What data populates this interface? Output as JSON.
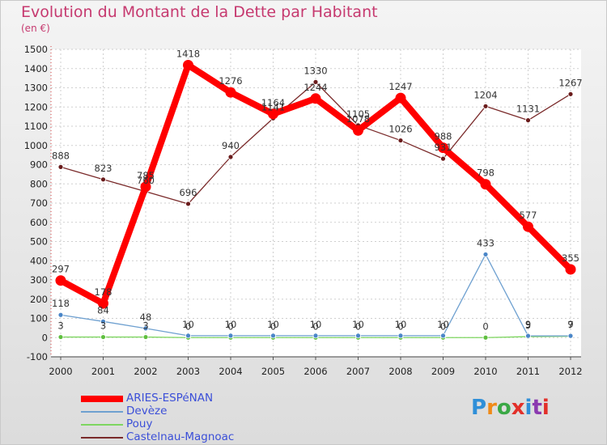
{
  "header": {
    "title": "Evolution du Montant de la Dette par Habitant",
    "subtitle": "(en €)"
  },
  "logo": {
    "text": "Proxiti",
    "colors": [
      "#2f8fd8",
      "#f08a18",
      "#3aa845",
      "#e2302a",
      "#2f8fd8",
      "#8b3ab0",
      "#e2302a"
    ]
  },
  "chart_data": {
    "type": "line",
    "x": [
      "2000",
      "2001",
      "2002",
      "2003",
      "2004",
      "2005",
      "2006",
      "2007",
      "2008",
      "2009",
      "2010",
      "2011",
      "2012"
    ],
    "ylim": [
      -100,
      1500
    ],
    "yticks": [
      "-100",
      "0",
      "100",
      "200",
      "300",
      "400",
      "500",
      "600",
      "700",
      "800",
      "900",
      "1000",
      "1100",
      "1200",
      "1300",
      "1400",
      "1500"
    ],
    "grid": true,
    "legend_position": "bottom-left",
    "series": [
      {
        "name": "ARIES-ESPéNAN",
        "color": "#ff0000",
        "values": [
          297,
          178,
          785,
          1418,
          1276,
          1164,
          1244,
          1078,
          1247,
          988,
          798,
          577,
          355
        ]
      },
      {
        "name": "Devèze",
        "color": "#6ea0d0",
        "values": [
          118,
          84,
          48,
          10,
          10,
          10,
          10,
          10,
          10,
          10,
          433,
          9,
          9
        ]
      },
      {
        "name": "Pouy",
        "color": "#7ed660",
        "values": [
          3,
          3,
          3,
          0,
          0,
          0,
          0,
          0,
          0,
          0,
          0,
          5,
          7
        ]
      },
      {
        "name": "Castelnau-Magnoac",
        "color": "#7a2a2a",
        "values": [
          888,
          823,
          760,
          696,
          940,
          1141,
          1330,
          1105,
          1026,
          931,
          1204,
          1131,
          1267
        ]
      }
    ],
    "data_labels": [
      {
        "series": 0,
        "labels": [
          "297",
          "178",
          "785",
          "1418",
          "1276",
          "1164",
          "1244",
          "1078",
          "1247",
          "988",
          "798",
          "577",
          "355"
        ]
      },
      {
        "series": 1,
        "labels": [
          "118",
          "84",
          "48",
          "10",
          "10",
          "10",
          "10",
          "10",
          "10",
          "10",
          "433",
          "9",
          "9"
        ]
      },
      {
        "series": 2,
        "labels": [
          "3",
          "3",
          "3",
          "0",
          "0",
          "0",
          "0",
          "0",
          "0",
          "0",
          "0",
          "5",
          "7"
        ]
      },
      {
        "series": 3,
        "labels": [
          "888",
          "823",
          "760",
          "696",
          "940",
          "1141",
          "1330",
          "1105",
          "1026",
          "931",
          "1204",
          "1131",
          "1267"
        ]
      }
    ]
  }
}
